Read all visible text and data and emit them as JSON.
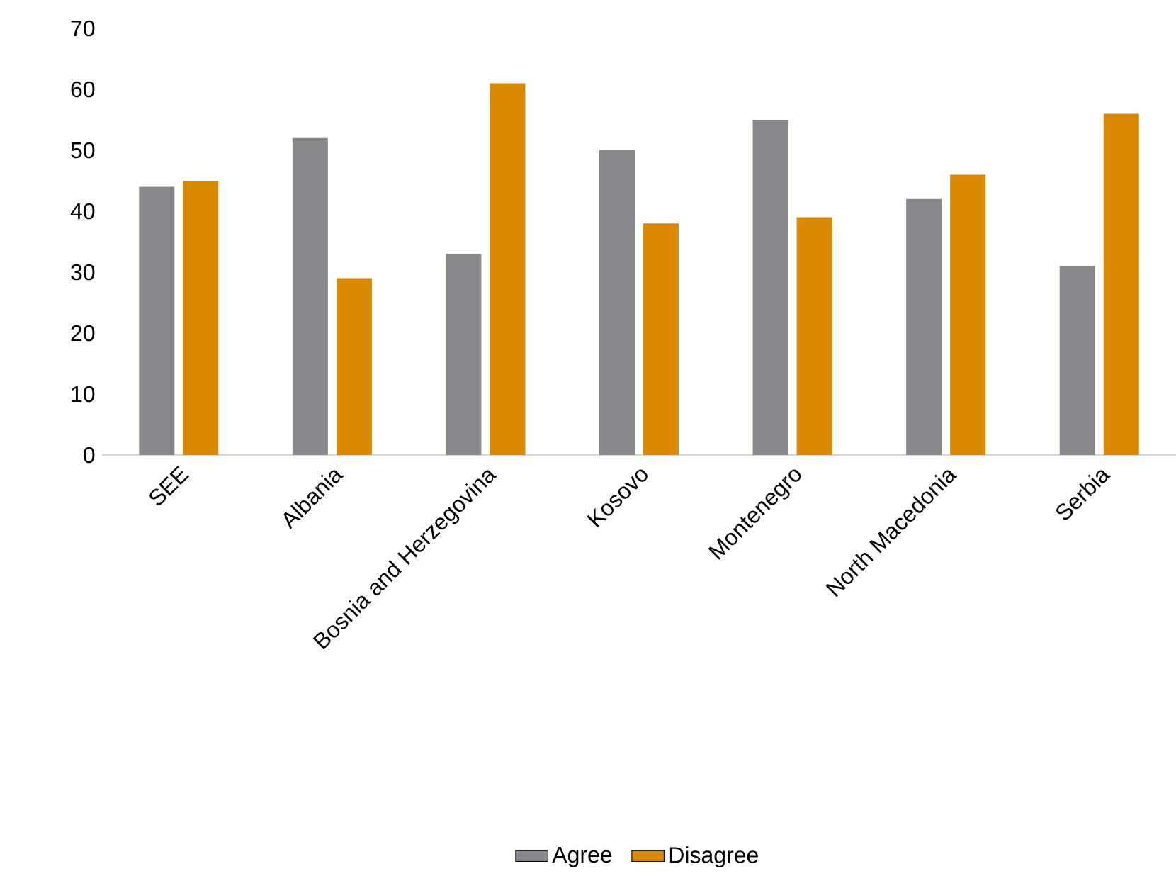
{
  "chart_data": {
    "type": "bar",
    "categories": [
      "SEE",
      "Albania",
      "Bosnia and Herzegovina",
      "Kosovo",
      "Montenegro",
      "North Macedonia",
      "Serbia"
    ],
    "series": [
      {
        "name": "Agree",
        "color": "#88888c",
        "values": [
          44,
          52,
          33,
          50,
          55,
          42,
          31
        ]
      },
      {
        "name": "Disagree",
        "color": "#d98a00",
        "values": [
          45,
          29,
          61,
          38,
          39,
          46,
          56
        ]
      }
    ],
    "ylim": [
      0,
      70
    ],
    "yticks": [
      0,
      10,
      20,
      30,
      40,
      50,
      60,
      70
    ],
    "legend": "bottom"
  }
}
